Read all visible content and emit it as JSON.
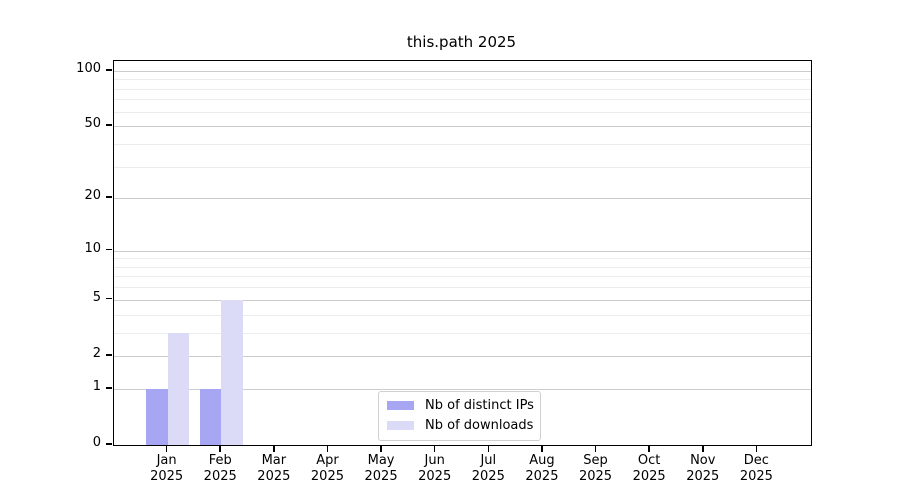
{
  "title": "this.path 2025",
  "chart_data": {
    "type": "bar",
    "title": "this.path 2025",
    "categories": [
      "Jan",
      "Feb",
      "Mar",
      "Apr",
      "May",
      "Jun",
      "Jul",
      "Aug",
      "Sep",
      "Oct",
      "Nov",
      "Dec"
    ],
    "year_label": "2025",
    "series": [
      {
        "name": "Nb of distinct IPs",
        "color": "#a6a6f2",
        "values": [
          1,
          1,
          0,
          0,
          0,
          0,
          0,
          0,
          0,
          0,
          0,
          0
        ]
      },
      {
        "name": "Nb of downloads",
        "color": "#dbdbf8",
        "values": [
          3,
          5,
          0,
          0,
          0,
          0,
          0,
          0,
          0,
          0,
          0,
          0
        ]
      }
    ],
    "xlabel": "",
    "ylabel": "",
    "y_scale": "log10(1+x)",
    "ylim": [
      0,
      113
    ],
    "y_major_ticks": [
      0,
      1,
      2,
      5,
      10,
      20,
      50,
      100
    ],
    "y_minor_gridlines": [
      3,
      4,
      6,
      7,
      8,
      9,
      30,
      40,
      60,
      70,
      80,
      90
    ],
    "grid": true,
    "legend_position": "lower center"
  }
}
